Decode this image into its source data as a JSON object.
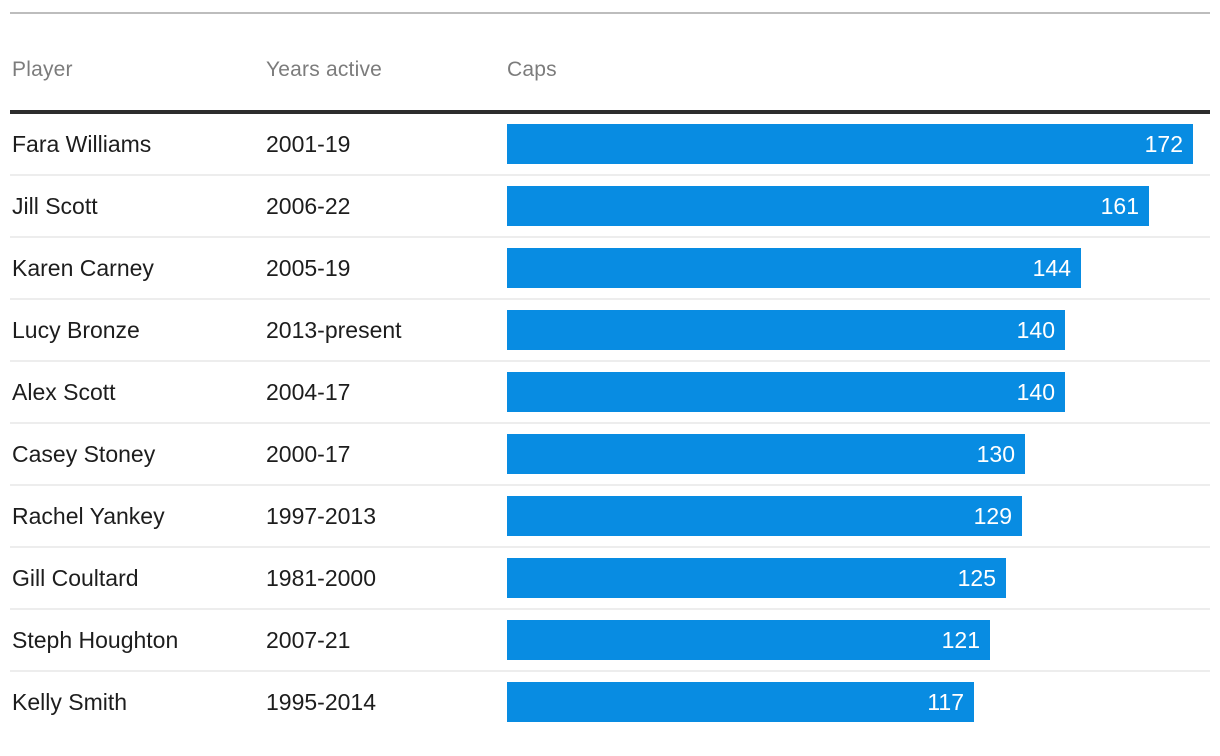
{
  "chart_data": {
    "type": "bar",
    "orientation": "horizontal",
    "title": "",
    "columns": {
      "player": "Player",
      "years": "Years active",
      "caps": "Caps"
    },
    "xlim": [
      0,
      172
    ],
    "grid": false,
    "bar_color": "#088ce2",
    "value_label_color": "#ffffff",
    "rows": [
      {
        "player": "Fara Williams",
        "years": "2001-19",
        "caps": 172
      },
      {
        "player": "Jill Scott",
        "years": "2006-22",
        "caps": 161
      },
      {
        "player": "Karen Carney",
        "years": "2005-19",
        "caps": 144
      },
      {
        "player": "Lucy Bronze",
        "years": "2013-present",
        "caps": 140
      },
      {
        "player": "Alex Scott",
        "years": "2004-17",
        "caps": 140
      },
      {
        "player": "Casey Stoney",
        "years": "2000-17",
        "caps": 130
      },
      {
        "player": "Rachel Yankey",
        "years": "1997-2013",
        "caps": 129
      },
      {
        "player": "Gill Coultard",
        "years": "1981-2000",
        "caps": 125
      },
      {
        "player": "Steph Houghton",
        "years": "2007-21",
        "caps": 121
      },
      {
        "player": "Kelly Smith",
        "years": "1995-2014",
        "caps": 117
      }
    ]
  },
  "colors": {
    "accent_blue": "#088ce2",
    "header_text": "#7c7c7c",
    "body_text": "#1d1d1d",
    "top_rule": "#bdbdbd",
    "header_rule": "#2d2d2d",
    "row_separator": "#ededed"
  }
}
